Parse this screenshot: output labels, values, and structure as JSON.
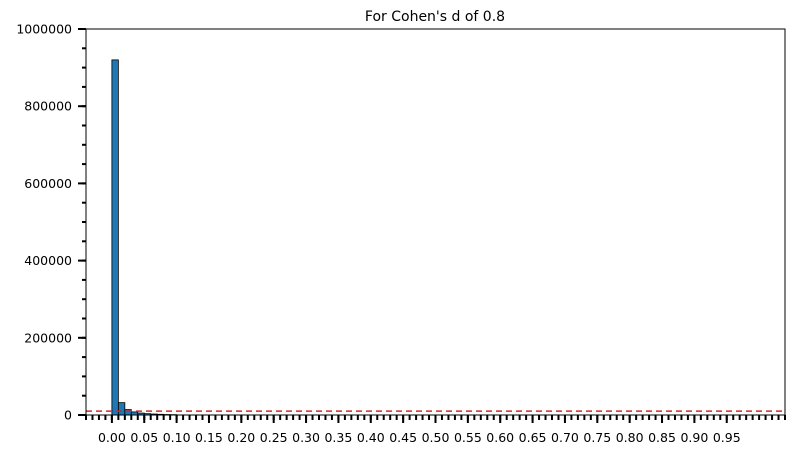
{
  "chart_data": {
    "type": "bar",
    "title": "For Cohen's d of 0.8",
    "xlabel": "",
    "ylabel": "",
    "xlim": [
      -0.04,
      1.04
    ],
    "ylim": [
      0,
      1000000
    ],
    "bin_width": 0.01,
    "bins": [
      {
        "x0": 0.0,
        "x1": 0.01,
        "count": 920000
      },
      {
        "x0": 0.01,
        "x1": 0.02,
        "count": 32000
      },
      {
        "x0": 0.02,
        "x1": 0.03,
        "count": 14000
      },
      {
        "x0": 0.03,
        "x1": 0.04,
        "count": 8000
      },
      {
        "x0": 0.04,
        "x1": 0.05,
        "count": 5000
      },
      {
        "x0": 0.05,
        "x1": 0.06,
        "count": 3500
      },
      {
        "x0": 0.06,
        "x1": 0.07,
        "count": 2500
      },
      {
        "x0": 0.07,
        "x1": 0.08,
        "count": 1800
      },
      {
        "x0": 0.08,
        "x1": 0.09,
        "count": 1200
      },
      {
        "x0": 0.09,
        "x1": 0.1,
        "count": 900
      }
    ],
    "y_ticks": [
      0,
      200000,
      400000,
      600000,
      800000,
      1000000
    ],
    "y_tick_labels": [
      "0",
      "200000",
      "400000",
      "600000",
      "800000",
      "1000000"
    ],
    "y_minor_step": 50000,
    "x_ticks": [
      0.0,
      0.05,
      0.1,
      0.15,
      0.2,
      0.25,
      0.3,
      0.35,
      0.4,
      0.45,
      0.5,
      0.55,
      0.6,
      0.65,
      0.7,
      0.75,
      0.8,
      0.85,
      0.9,
      0.95
    ],
    "x_tick_labels": [
      "0.00",
      "0.05",
      "0.10",
      "0.15",
      "0.20",
      "0.25",
      "0.30",
      "0.35",
      "0.40",
      "0.45",
      "0.50",
      "0.55",
      "0.60",
      "0.65",
      "0.70",
      "0.75",
      "0.80",
      "0.85",
      "0.90",
      "0.95"
    ],
    "x_minor_step": 0.01,
    "reference_line": {
      "y": 10000,
      "style": "dashed"
    },
    "grid": false,
    "colors": {
      "bar": "#1f77b4",
      "bar_edge": "#000000",
      "reference_line": "#d62728",
      "axis": "#000000"
    }
  }
}
